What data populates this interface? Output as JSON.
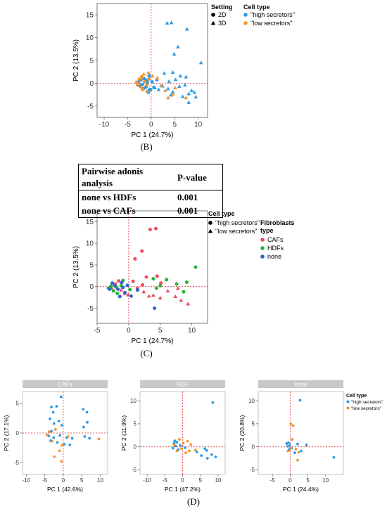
{
  "labels": {
    "B": "(B)",
    "C": "(C)",
    "D": "(D)"
  },
  "adonis_table": {
    "header": [
      "Pairwise adonis analysis",
      "P-value"
    ],
    "rows": [
      [
        "none vs HDFs",
        "0.001"
      ],
      [
        "none vs CAFs",
        "0.001"
      ]
    ]
  },
  "colors": {
    "high": "#2c9be8",
    "low": "#f39530",
    "CAFs": "#ee4a5e",
    "HDFs": "#26b33a",
    "none": "#2d63d0",
    "ref_line": "#e0303a",
    "strip": "#c8c8c8"
  },
  "chart_data": [
    {
      "id": "B",
      "type": "scatter",
      "xlabel": "PC 1  (24.7%)",
      "ylabel": "PC 2  (13.5%)",
      "xlim": [
        -11.5,
        12
      ],
      "ylim": [
        -7.5,
        17.5
      ],
      "xticks": [
        -10,
        -5,
        0,
        5,
        10
      ],
      "yticks": [
        -5,
        0,
        5,
        10,
        15
      ],
      "reference_lines": {
        "x": 0,
        "y": 0
      },
      "legend": {
        "shape_title": "Setting",
        "shapes": [
          {
            "label": "2D",
            "marker": "circle"
          },
          {
            "label": "3D",
            "marker": "triangle"
          }
        ],
        "color_title": "Cell type",
        "colors": [
          {
            "label": "\"high secretors\"",
            "key": "high"
          },
          {
            "label": "\"low secretors\"",
            "key": "low"
          }
        ]
      },
      "series": [
        {
          "key": "high",
          "marker": "triangle",
          "points": [
            [
              3.4,
              13.2
            ],
            [
              4.3,
              13.3
            ],
            [
              7.6,
              11.9
            ],
            [
              5.7,
              8.0
            ],
            [
              10.6,
              4.5
            ],
            [
              4.9,
              6.4
            ],
            [
              2.8,
              2.2
            ],
            [
              4.6,
              2.4
            ],
            [
              6.2,
              1.6
            ],
            [
              7.4,
              1.4
            ],
            [
              5.2,
              0.8
            ],
            [
              3.8,
              0.4
            ],
            [
              6.0,
              -0.7
            ],
            [
              7.2,
              -0.4
            ],
            [
              8.6,
              -1.6
            ],
            [
              9.2,
              -2.0
            ],
            [
              9.5,
              -3.0
            ],
            [
              8.0,
              -2.3
            ],
            [
              4.6,
              -1.9
            ],
            [
              3.6,
              -1.2
            ],
            [
              1.6,
              -1.4
            ],
            [
              2.4,
              -0.6
            ],
            [
              0.8,
              -1.0
            ],
            [
              -0.4,
              -1.3
            ],
            [
              1.2,
              0.8
            ],
            [
              6.7,
              -2.9
            ],
            [
              4.2,
              -2.6
            ],
            [
              8.0,
              -4.2
            ]
          ]
        },
        {
          "key": "high",
          "marker": "circle",
          "points": [
            [
              -2.7,
              0.3
            ],
            [
              -2.2,
              0.7
            ],
            [
              -1.9,
              -0.3
            ],
            [
              -1.5,
              1.0
            ],
            [
              -1.1,
              -0.8
            ],
            [
              -0.8,
              0.2
            ],
            [
              -0.4,
              1.6
            ],
            [
              -0.1,
              -1.4
            ],
            [
              -2.4,
              -0.6
            ],
            [
              -1.6,
              -1.2
            ],
            [
              -1.0,
              0.6
            ],
            [
              0.2,
              0.3
            ],
            [
              0.6,
              -0.9
            ],
            [
              -0.6,
              -2.0
            ]
          ]
        },
        {
          "key": "low",
          "marker": "triangle",
          "points": [
            [
              -1.6,
              2.0
            ],
            [
              -0.6,
              2.3
            ],
            [
              0.3,
              1.6
            ],
            [
              1.3,
              1.2
            ],
            [
              2.1,
              -0.5
            ],
            [
              3.0,
              -1.6
            ],
            [
              3.6,
              -3.2
            ],
            [
              4.6,
              -2.4
            ],
            [
              5.1,
              -1.0
            ],
            [
              7.4,
              -3.2
            ],
            [
              -0.9,
              -1.7
            ],
            [
              -2.1,
              -0.8
            ]
          ]
        },
        {
          "key": "low",
          "marker": "circle",
          "points": [
            [
              -2.9,
              -0.4
            ],
            [
              -2.5,
              0.9
            ],
            [
              -2.0,
              1.4
            ],
            [
              -1.4,
              0.3
            ],
            [
              -0.9,
              -0.4
            ],
            [
              -0.5,
              0.9
            ],
            [
              -1.8,
              -1.4
            ],
            [
              -3.1,
              0.2
            ]
          ]
        }
      ]
    },
    {
      "id": "C",
      "type": "scatter",
      "xlabel": "PC 1  (24.7%)",
      "ylabel": "PC 2  (13.5%)",
      "xlim": [
        -5,
        12.5
      ],
      "ylim": [
        -8.5,
        17.5
      ],
      "xticks": [
        -5,
        0,
        5,
        10
      ],
      "yticks": [
        -5,
        0,
        5,
        10,
        15
      ],
      "reference_lines": {
        "x": 0,
        "y": 0
      },
      "legend": {
        "shape_title": "Cell type",
        "shapes": [
          {
            "label": "\"high secretors\"",
            "marker": "circle"
          },
          {
            "label": "\"low secretors\"",
            "marker": "triangle"
          }
        ],
        "color_title": "Fibroblasts type",
        "colors": [
          {
            "label": "CAFs",
            "key": "CAFs"
          },
          {
            "label": "HDFs",
            "key": "HDFs"
          },
          {
            "label": "none",
            "key": "none"
          }
        ]
      },
      "series": [
        {
          "key": "CAFs",
          "marker": "circle",
          "points": [
            [
              3.4,
              13.2
            ],
            [
              4.3,
              13.4
            ],
            [
              2.1,
              8.2
            ],
            [
              1.0,
              6.4
            ],
            [
              2.8,
              2.2
            ],
            [
              4.5,
              2.4
            ],
            [
              5.1,
              0.8
            ],
            [
              2.2,
              0.4
            ],
            [
              1.4,
              -0.4
            ],
            [
              -2.1,
              0.6
            ],
            [
              -1.6,
              1.3
            ],
            [
              0.7,
              1.2
            ],
            [
              -0.6,
              -1.6
            ]
          ]
        },
        {
          "key": "CAFs",
          "marker": "triangle",
          "points": [
            [
              3.9,
              -2.0
            ],
            [
              5.0,
              -2.6
            ],
            [
              6.2,
              -1.0
            ],
            [
              7.4,
              -2.3
            ],
            [
              8.3,
              -3.2
            ],
            [
              9.4,
              -4.0
            ],
            [
              7.8,
              -0.4
            ],
            [
              2.4,
              -1.2
            ],
            [
              3.2,
              -2.2
            ],
            [
              -1.2,
              -0.8
            ],
            [
              -0.1,
              -1.9
            ],
            [
              -2.7,
              -0.3
            ]
          ]
        },
        {
          "key": "HDFs",
          "marker": "circle",
          "points": [
            [
              10.6,
              4.5
            ],
            [
              9.2,
              1.0
            ],
            [
              7.6,
              0.6
            ],
            [
              6.0,
              1.6
            ],
            [
              5.0,
              0.2
            ],
            [
              3.9,
              1.8
            ],
            [
              4.4,
              -0.4
            ],
            [
              8.7,
              -1.2
            ],
            [
              -2.4,
              -1.0
            ],
            [
              -1.8,
              -1.6
            ],
            [
              -1.2,
              0.2
            ],
            [
              0.2,
              -0.7
            ],
            [
              -2.8,
              0.1
            ],
            [
              -3.2,
              -0.4
            ],
            [
              -0.9,
              1.4
            ],
            [
              -2.0,
              -0.1
            ]
          ]
        },
        {
          "key": "none",
          "marker": "circle",
          "points": [
            [
              -2.6,
              0.8
            ],
            [
              -2.2,
              0.2
            ],
            [
              -1.7,
              -0.6
            ],
            [
              -1.1,
              0.9
            ],
            [
              -0.6,
              -1.4
            ],
            [
              -0.2,
              0.3
            ],
            [
              0.4,
              -2.2
            ],
            [
              1.4,
              -0.8
            ],
            [
              -1.4,
              -2.3
            ],
            [
              -3.0,
              -0.6
            ],
            [
              4.1,
              -5.0
            ],
            [
              -0.9,
              -0.2
            ]
          ]
        }
      ]
    },
    {
      "id": "D-CAFs",
      "type": "scatter",
      "facet": "CAFs",
      "xlabel": "PC 1  (42.6%)",
      "ylabel": "PC 2  (17.1%)",
      "xlim": [
        -11,
        12
      ],
      "ylim": [
        -7,
        7
      ],
      "xticks": [
        -10,
        -5,
        0,
        5,
        10
      ],
      "yticks": [
        -5,
        0,
        5
      ],
      "reference_lines": {
        "x": 0,
        "y": 0
      },
      "series": [
        {
          "key": "high",
          "marker": "circle",
          "points": [
            [
              -0.6,
              6.1
            ],
            [
              -1.8,
              4.5
            ],
            [
              -3.2,
              4.4
            ],
            [
              -2.7,
              3.5
            ],
            [
              -3.6,
              2.4
            ],
            [
              -2.5,
              1.6
            ],
            [
              -1.2,
              2.0
            ],
            [
              -0.4,
              1.3
            ],
            [
              -3.2,
              0.3
            ],
            [
              -3.9,
              -0.5
            ],
            [
              -2.6,
              -0.8
            ],
            [
              -0.9,
              -0.4
            ],
            [
              0.3,
              -1.9
            ],
            [
              1.8,
              -2.0
            ],
            [
              2.4,
              -0.9
            ],
            [
              5.4,
              4.0
            ],
            [
              6.4,
              3.5
            ],
            [
              6.5,
              1.8
            ],
            [
              5.5,
              1.0
            ],
            [
              5.8,
              -0.6
            ],
            [
              7.1,
              -0.9
            ],
            [
              -1.6,
              -1.6
            ],
            [
              0.9,
              -0.8
            ],
            [
              -3.4,
              -1.3
            ]
          ]
        },
        {
          "key": "low",
          "marker": "circle",
          "points": [
            [
              -2.1,
              0.6
            ],
            [
              -4.4,
              -0.3
            ],
            [
              -3.0,
              -1.4
            ],
            [
              -1.0,
              -3.0
            ],
            [
              -0.5,
              -4.8
            ],
            [
              -2.4,
              -4.0
            ],
            [
              1.3,
              -0.6
            ],
            [
              9.6,
              -1.0
            ],
            [
              -3.8,
              0.2
            ],
            [
              -0.3,
              -2.1
            ]
          ]
        }
      ]
    },
    {
      "id": "D-HDF",
      "type": "scatter",
      "facet": "HDF",
      "xlabel": "PC 1  (47.2%)",
      "ylabel": "PC 2  (11.9%)",
      "xlim": [
        -12,
        12
      ],
      "ylim": [
        -6,
        12
      ],
      "xticks": [
        -10,
        -5,
        0,
        5,
        10
      ],
      "yticks": [
        -5,
        0,
        5,
        10
      ],
      "reference_lines": {
        "x": 0,
        "y": 0
      },
      "series": [
        {
          "key": "high",
          "marker": "circle",
          "points": [
            [
              8.5,
              9.6
            ],
            [
              6.3,
              -0.4
            ],
            [
              4.0,
              -1.1
            ],
            [
              5.3,
              -1.9
            ],
            [
              7.0,
              -2.5
            ],
            [
              8.2,
              -1.7
            ],
            [
              9.3,
              -2.2
            ],
            [
              6.8,
              -0.8
            ],
            [
              -2.4,
              0.8
            ],
            [
              -2.0,
              0.2
            ],
            [
              -1.6,
              1.0
            ],
            [
              -2.7,
              -0.3
            ],
            [
              -1.2,
              -0.6
            ],
            [
              -0.6,
              0.3
            ],
            [
              -2.2,
              1.3
            ],
            [
              0.7,
              -0.2
            ]
          ]
        },
        {
          "key": "low",
          "marker": "circle",
          "points": [
            [
              -0.9,
              1.6
            ],
            [
              0.2,
              0.8
            ],
            [
              1.4,
              1.2
            ],
            [
              2.3,
              0.5
            ],
            [
              1.9,
              -0.9
            ],
            [
              3.6,
              -0.7
            ],
            [
              0.9,
              -1.3
            ],
            [
              -1.6,
              -0.9
            ],
            [
              -0.3,
              -0.4
            ],
            [
              -2.4,
              0.4
            ]
          ]
        }
      ]
    },
    {
      "id": "D-none",
      "type": "scatter",
      "facet": "none",
      "xlabel": "PC 1  (24.4%)",
      "ylabel": "PC 2  (20.8%)",
      "xlim": [
        -9,
        15
      ],
      "ylim": [
        -6,
        12
      ],
      "xticks": [
        -5,
        0,
        5,
        10
      ],
      "yticks": [
        -5,
        0,
        5,
        10
      ],
      "reference_lines": {
        "x": 0,
        "y": 0
      },
      "legend": {
        "color_title": "Cell type",
        "colors": [
          {
            "label": "\"high secretors\"",
            "key": "high"
          },
          {
            "label": "\"low secretors\"",
            "key": "low"
          }
        ]
      },
      "series": [
        {
          "key": "high",
          "marker": "circle",
          "points": [
            [
              2.8,
              10.1
            ],
            [
              12.3,
              -2.3
            ],
            [
              4.6,
              0.4
            ],
            [
              3.1,
              -0.9
            ],
            [
              2.1,
              0.6
            ],
            [
              -0.7,
              0.1
            ],
            [
              -0.3,
              -0.6
            ],
            [
              -1.0,
              0.7
            ],
            [
              -0.5,
              0.9
            ],
            [
              0.4,
              -0.3
            ],
            [
              1.3,
              -1.3
            ],
            [
              -0.1,
              0.4
            ]
          ]
        },
        {
          "key": "low",
          "marker": "circle",
          "points": [
            [
              0.2,
              5.0
            ],
            [
              0.8,
              4.6
            ],
            [
              0.6,
              1.6
            ],
            [
              1.6,
              -0.5
            ],
            [
              2.4,
              -1.2
            ],
            [
              2.1,
              -2.9
            ],
            [
              -0.6,
              -0.9
            ],
            [
              0.1,
              -0.2
            ]
          ]
        }
      ]
    }
  ]
}
